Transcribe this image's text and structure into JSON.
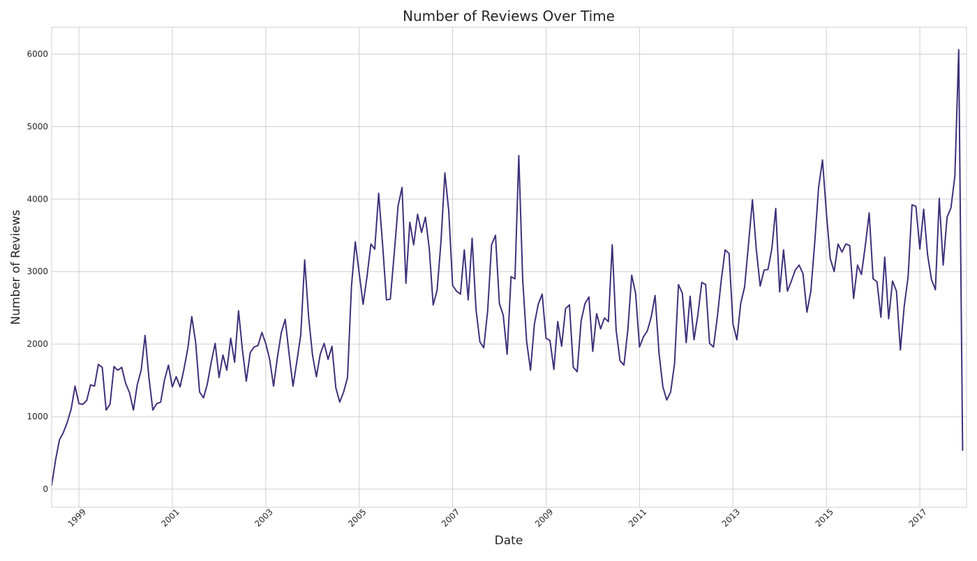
{
  "chart_data": {
    "type": "line",
    "title": "Number of Reviews Over Time",
    "xlabel": "Date",
    "ylabel": "Number of Reviews",
    "x_ticks": [
      "1999",
      "2001",
      "2003",
      "2005",
      "2007",
      "2009",
      "2011",
      "2013",
      "2015",
      "2017"
    ],
    "y_ticks": [
      0,
      1000,
      2000,
      3000,
      4000,
      5000,
      6000
    ],
    "xlim": [
      "1998-06",
      "2018-01"
    ],
    "ylim": [
      -250,
      6370
    ],
    "grid": true,
    "legend": "none",
    "line_color": "#40307a",
    "series": [
      {
        "points": [
          [
            "1998-06",
            50
          ],
          [
            "1998-07",
            400
          ],
          [
            "1998-08",
            680
          ],
          [
            "1998-09",
            780
          ],
          [
            "1998-10",
            920
          ],
          [
            "1998-11",
            1100
          ],
          [
            "1998-12",
            1420
          ],
          [
            "1999-01",
            1180
          ],
          [
            "1999-02",
            1170
          ],
          [
            "1999-03",
            1220
          ],
          [
            "1999-04",
            1440
          ],
          [
            "1999-05",
            1420
          ],
          [
            "1999-06",
            1720
          ],
          [
            "1999-07",
            1680
          ],
          [
            "1999-08",
            1090
          ],
          [
            "1999-09",
            1170
          ],
          [
            "1999-10",
            1690
          ],
          [
            "1999-11",
            1640
          ],
          [
            "1999-12",
            1680
          ],
          [
            "2000-01",
            1460
          ],
          [
            "2000-02",
            1330
          ],
          [
            "2000-03",
            1090
          ],
          [
            "2000-04",
            1440
          ],
          [
            "2000-05",
            1640
          ],
          [
            "2000-06",
            2120
          ],
          [
            "2000-07",
            1530
          ],
          [
            "2000-08",
            1090
          ],
          [
            "2000-09",
            1180
          ],
          [
            "2000-10",
            1200
          ],
          [
            "2000-11",
            1510
          ],
          [
            "2000-12",
            1710
          ],
          [
            "2001-01",
            1410
          ],
          [
            "2001-02",
            1550
          ],
          [
            "2001-03",
            1410
          ],
          [
            "2001-04",
            1660
          ],
          [
            "2001-05",
            1950
          ],
          [
            "2001-06",
            2380
          ],
          [
            "2001-07",
            2020
          ],
          [
            "2001-08",
            1340
          ],
          [
            "2001-09",
            1260
          ],
          [
            "2001-10",
            1450
          ],
          [
            "2001-11",
            1750
          ],
          [
            "2001-12",
            2010
          ],
          [
            "2002-01",
            1540
          ],
          [
            "2002-02",
            1850
          ],
          [
            "2002-03",
            1640
          ],
          [
            "2002-04",
            2080
          ],
          [
            "2002-05",
            1750
          ],
          [
            "2002-06",
            2460
          ],
          [
            "2002-07",
            1920
          ],
          [
            "2002-08",
            1490
          ],
          [
            "2002-09",
            1880
          ],
          [
            "2002-10",
            1960
          ],
          [
            "2002-11",
            1980
          ],
          [
            "2002-12",
            2160
          ],
          [
            "2003-01",
            2010
          ],
          [
            "2003-02",
            1790
          ],
          [
            "2003-03",
            1420
          ],
          [
            "2003-04",
            1820
          ],
          [
            "2003-05",
            2160
          ],
          [
            "2003-06",
            2340
          ],
          [
            "2003-07",
            1860
          ],
          [
            "2003-08",
            1420
          ],
          [
            "2003-09",
            1770
          ],
          [
            "2003-10",
            2130
          ],
          [
            "2003-11",
            3160
          ],
          [
            "2003-12",
            2380
          ],
          [
            "2004-01",
            1850
          ],
          [
            "2004-02",
            1550
          ],
          [
            "2004-03",
            1860
          ],
          [
            "2004-04",
            2010
          ],
          [
            "2004-05",
            1790
          ],
          [
            "2004-06",
            1970
          ],
          [
            "2004-07",
            1400
          ],
          [
            "2004-08",
            1200
          ],
          [
            "2004-09",
            1340
          ],
          [
            "2004-10",
            1540
          ],
          [
            "2004-11",
            2790
          ],
          [
            "2004-12",
            3410
          ],
          [
            "2005-01",
            2980
          ],
          [
            "2005-02",
            2550
          ],
          [
            "2005-03",
            2930
          ],
          [
            "2005-04",
            3380
          ],
          [
            "2005-05",
            3310
          ],
          [
            "2005-06",
            4080
          ],
          [
            "2005-07",
            3380
          ],
          [
            "2005-08",
            2610
          ],
          [
            "2005-09",
            2620
          ],
          [
            "2005-10",
            3250
          ],
          [
            "2005-11",
            3910
          ],
          [
            "2005-12",
            4160
          ],
          [
            "2006-01",
            2840
          ],
          [
            "2006-02",
            3680
          ],
          [
            "2006-03",
            3370
          ],
          [
            "2006-04",
            3790
          ],
          [
            "2006-05",
            3540
          ],
          [
            "2006-06",
            3750
          ],
          [
            "2006-07",
            3320
          ],
          [
            "2006-08",
            2540
          ],
          [
            "2006-09",
            2740
          ],
          [
            "2006-10",
            3410
          ],
          [
            "2006-11",
            4360
          ],
          [
            "2006-12",
            3840
          ],
          [
            "2007-01",
            2810
          ],
          [
            "2007-02",
            2730
          ],
          [
            "2007-03",
            2690
          ],
          [
            "2007-04",
            3300
          ],
          [
            "2007-05",
            2610
          ],
          [
            "2007-06",
            3460
          ],
          [
            "2007-07",
            2480
          ],
          [
            "2007-08",
            2030
          ],
          [
            "2007-09",
            1950
          ],
          [
            "2007-10",
            2460
          ],
          [
            "2007-11",
            3370
          ],
          [
            "2007-12",
            3500
          ],
          [
            "2008-01",
            2560
          ],
          [
            "2008-02",
            2400
          ],
          [
            "2008-03",
            1860
          ],
          [
            "2008-04",
            2930
          ],
          [
            "2008-05",
            2900
          ],
          [
            "2008-06",
            4600
          ],
          [
            "2008-07",
            2890
          ],
          [
            "2008-08",
            2040
          ],
          [
            "2008-09",
            1640
          ],
          [
            "2008-10",
            2280
          ],
          [
            "2008-11",
            2550
          ],
          [
            "2008-12",
            2690
          ],
          [
            "2009-01",
            2080
          ],
          [
            "2009-02",
            2050
          ],
          [
            "2009-03",
            1650
          ],
          [
            "2009-04",
            2310
          ],
          [
            "2009-05",
            1970
          ],
          [
            "2009-06",
            2490
          ],
          [
            "2009-07",
            2540
          ],
          [
            "2009-08",
            1680
          ],
          [
            "2009-09",
            1620
          ],
          [
            "2009-10",
            2320
          ],
          [
            "2009-11",
            2560
          ],
          [
            "2009-12",
            2650
          ],
          [
            "2010-01",
            1900
          ],
          [
            "2010-02",
            2420
          ],
          [
            "2010-03",
            2210
          ],
          [
            "2010-04",
            2360
          ],
          [
            "2010-05",
            2310
          ],
          [
            "2010-06",
            3370
          ],
          [
            "2010-07",
            2190
          ],
          [
            "2010-08",
            1770
          ],
          [
            "2010-09",
            1710
          ],
          [
            "2010-10",
            2200
          ],
          [
            "2010-11",
            2950
          ],
          [
            "2010-12",
            2700
          ],
          [
            "2011-01",
            1960
          ],
          [
            "2011-02",
            2100
          ],
          [
            "2011-03",
            2180
          ],
          [
            "2011-04",
            2370
          ],
          [
            "2011-05",
            2670
          ],
          [
            "2011-06",
            1880
          ],
          [
            "2011-07",
            1410
          ],
          [
            "2011-08",
            1230
          ],
          [
            "2011-09",
            1340
          ],
          [
            "2011-10",
            1730
          ],
          [
            "2011-11",
            2820
          ],
          [
            "2011-12",
            2700
          ],
          [
            "2012-01",
            2020
          ],
          [
            "2012-02",
            2660
          ],
          [
            "2012-03",
            2060
          ],
          [
            "2012-04",
            2410
          ],
          [
            "2012-05",
            2850
          ],
          [
            "2012-06",
            2820
          ],
          [
            "2012-07",
            2010
          ],
          [
            "2012-08",
            1960
          ],
          [
            "2012-09",
            2380
          ],
          [
            "2012-10",
            2880
          ],
          [
            "2012-11",
            3300
          ],
          [
            "2012-12",
            3250
          ],
          [
            "2013-01",
            2280
          ],
          [
            "2013-02",
            2060
          ],
          [
            "2013-03",
            2560
          ],
          [
            "2013-04",
            2790
          ],
          [
            "2013-05",
            3380
          ],
          [
            "2013-06",
            3990
          ],
          [
            "2013-07",
            3310
          ],
          [
            "2013-08",
            2800
          ],
          [
            "2013-09",
            3020
          ],
          [
            "2013-10",
            3030
          ],
          [
            "2013-11",
            3320
          ],
          [
            "2013-12",
            3870
          ],
          [
            "2014-01",
            2720
          ],
          [
            "2014-02",
            3300
          ],
          [
            "2014-03",
            2730
          ],
          [
            "2014-04",
            2870
          ],
          [
            "2014-05",
            3020
          ],
          [
            "2014-06",
            3090
          ],
          [
            "2014-07",
            2970
          ],
          [
            "2014-08",
            2440
          ],
          [
            "2014-09",
            2730
          ],
          [
            "2014-10",
            3390
          ],
          [
            "2014-11",
            4160
          ],
          [
            "2014-12",
            4540
          ],
          [
            "2015-01",
            3810
          ],
          [
            "2015-02",
            3180
          ],
          [
            "2015-03",
            3000
          ],
          [
            "2015-04",
            3380
          ],
          [
            "2015-05",
            3270
          ],
          [
            "2015-06",
            3380
          ],
          [
            "2015-07",
            3360
          ],
          [
            "2015-08",
            2630
          ],
          [
            "2015-09",
            3090
          ],
          [
            "2015-10",
            2960
          ],
          [
            "2015-11",
            3360
          ],
          [
            "2015-12",
            3810
          ],
          [
            "2016-01",
            2900
          ],
          [
            "2016-02",
            2860
          ],
          [
            "2016-03",
            2370
          ],
          [
            "2016-04",
            3200
          ],
          [
            "2016-05",
            2350
          ],
          [
            "2016-06",
            2870
          ],
          [
            "2016-07",
            2730
          ],
          [
            "2016-08",
            1920
          ],
          [
            "2016-09",
            2520
          ],
          [
            "2016-10",
            2930
          ],
          [
            "2016-11",
            3920
          ],
          [
            "2016-12",
            3900
          ],
          [
            "2017-01",
            3310
          ],
          [
            "2017-02",
            3860
          ],
          [
            "2017-03",
            3230
          ],
          [
            "2017-04",
            2890
          ],
          [
            "2017-05",
            2750
          ],
          [
            "2017-06",
            4010
          ],
          [
            "2017-07",
            3090
          ],
          [
            "2017-08",
            3750
          ],
          [
            "2017-09",
            3880
          ],
          [
            "2017-10",
            4320
          ],
          [
            "2017-11",
            6060
          ],
          [
            "2017-12",
            530
          ]
        ]
      }
    ]
  }
}
